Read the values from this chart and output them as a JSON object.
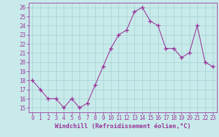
{
  "x": [
    0,
    1,
    2,
    3,
    4,
    5,
    6,
    7,
    8,
    9,
    10,
    11,
    12,
    13,
    14,
    15,
    16,
    17,
    18,
    19,
    20,
    21,
    22,
    23
  ],
  "y": [
    18,
    17,
    16,
    16,
    15,
    16,
    15,
    15.5,
    17.5,
    19.5,
    21.5,
    23,
    23.5,
    25.5,
    26,
    24.5,
    24,
    21.5,
    21.5,
    20.5,
    21,
    24,
    20,
    19.5
  ],
  "line_color": "#993399",
  "marker": "+",
  "marker_size": 4,
  "background_color": "#c8eaea",
  "grid_color": "#aad4d4",
  "xlabel": "Windchill (Refroidissement éolien,°C)",
  "ylim": [
    14.5,
    26.5
  ],
  "yticks": [
    15,
    16,
    17,
    18,
    19,
    20,
    21,
    22,
    23,
    24,
    25,
    26
  ],
  "xticks": [
    0,
    1,
    2,
    3,
    4,
    5,
    6,
    7,
    8,
    9,
    10,
    11,
    12,
    13,
    14,
    15,
    16,
    17,
    18,
    19,
    20,
    21,
    22,
    23
  ],
  "tick_label_fontsize": 5.5,
  "xlabel_fontsize": 6.5,
  "linewidth": 0.8,
  "marker_linewidth": 1.0
}
